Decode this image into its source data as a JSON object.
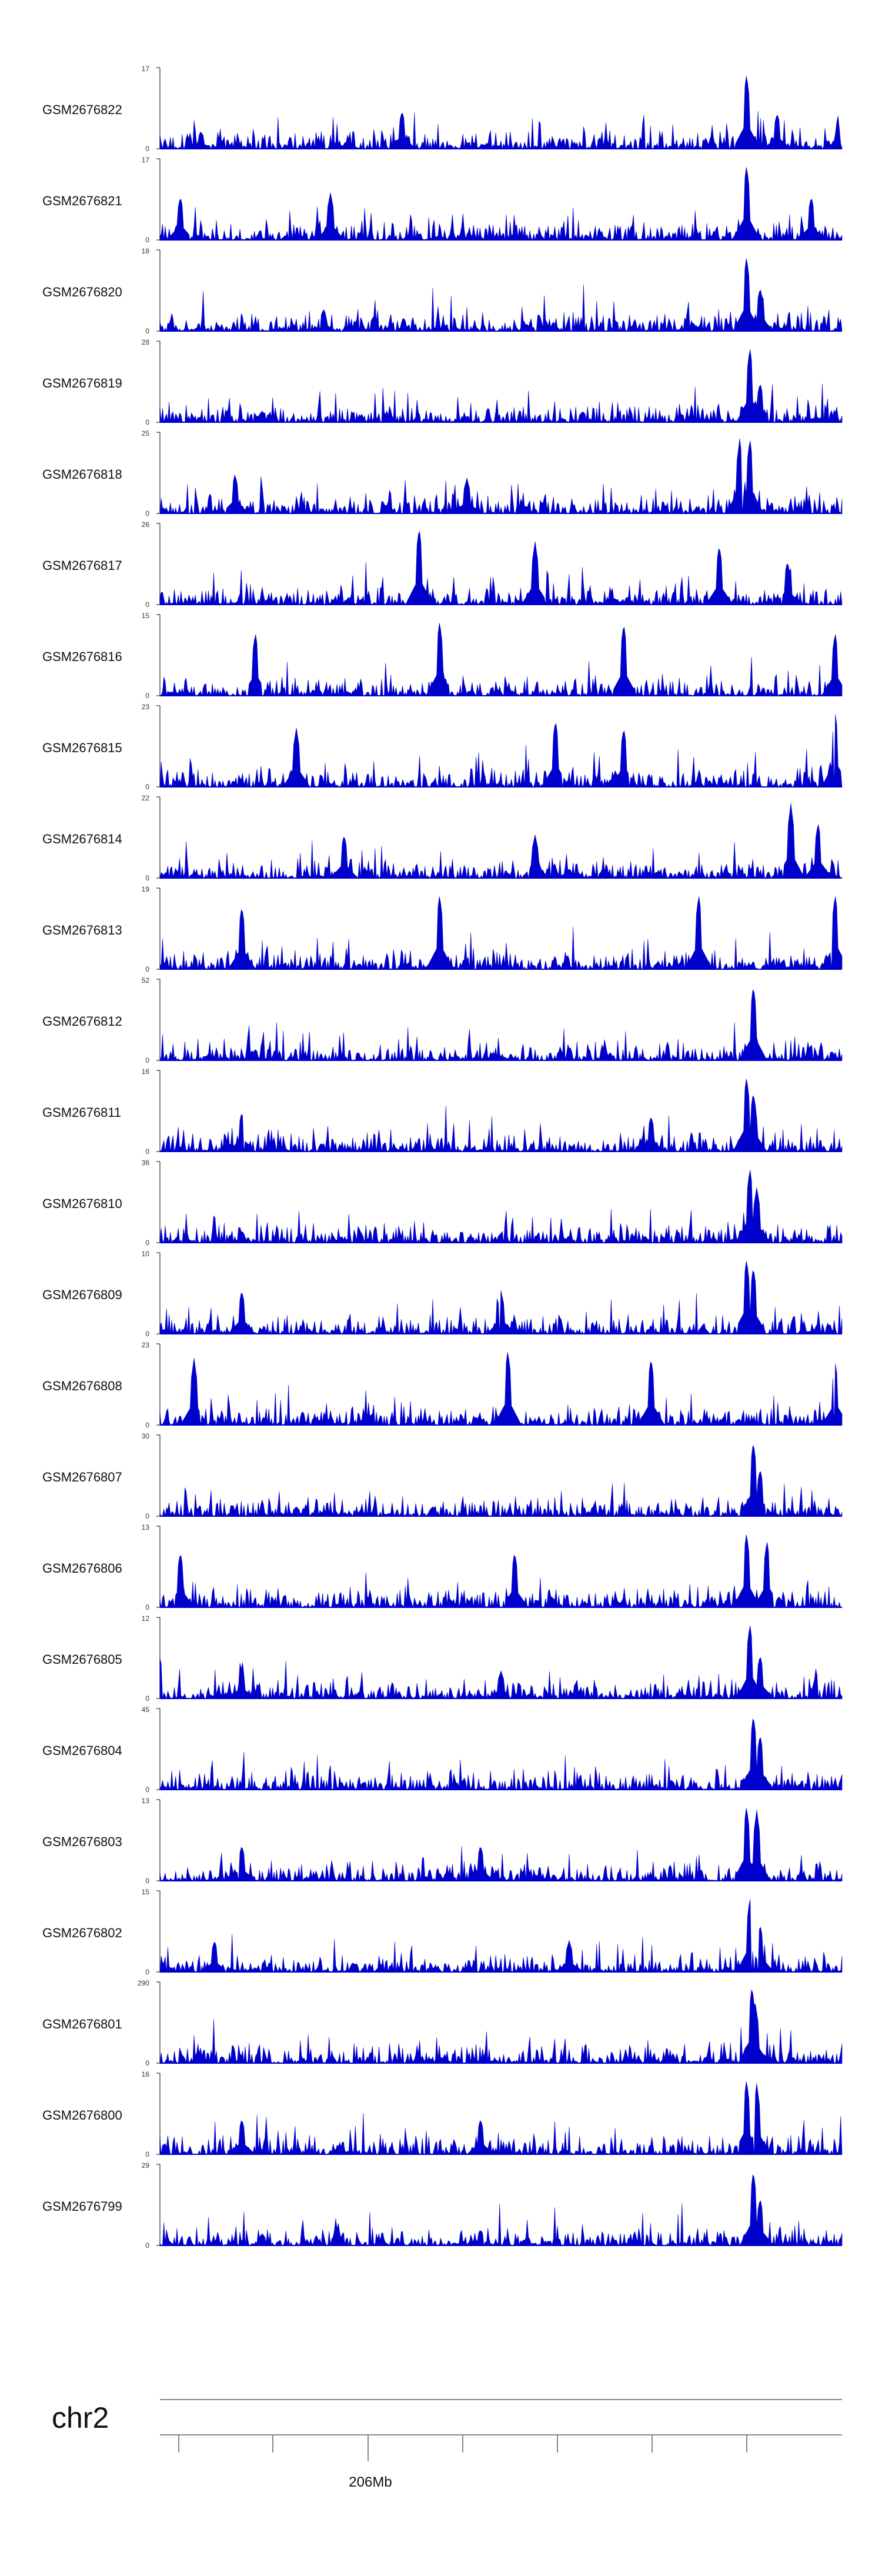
{
  "colors": {
    "signal": "#0000cc",
    "axis": "#555555",
    "text": "#111111"
  },
  "chart_data": {
    "type": "area",
    "tracks": [
      {
        "name": "GSM2676822",
        "ymax": "17",
        "ymin": "0",
        "max": 17,
        "peaks": [
          [
            0.06,
            0.22
          ],
          [
            0.355,
            0.48
          ],
          [
            0.86,
            0.95
          ],
          [
            0.905,
            0.45
          ]
        ]
      },
      {
        "name": "GSM2676821",
        "ymax": "17",
        "ymin": "0",
        "max": 17,
        "peaks": [
          [
            0.03,
            0.55
          ],
          [
            0.25,
            0.6
          ],
          [
            0.86,
            0.95
          ],
          [
            0.955,
            0.55
          ]
        ]
      },
      {
        "name": "GSM2676820",
        "ymax": "18",
        "ymin": "0",
        "max": 18,
        "peaks": [
          [
            0.24,
            0.28
          ],
          [
            0.555,
            0.22
          ],
          [
            0.86,
            0.95
          ],
          [
            0.88,
            0.55
          ]
        ]
      },
      {
        "name": "GSM2676819",
        "ymax": "28",
        "ymin": "0",
        "max": 28,
        "peaks": [
          [
            0.15,
            0.14
          ],
          [
            0.62,
            0.14
          ],
          [
            0.865,
            0.95
          ],
          [
            0.88,
            0.5
          ]
        ]
      },
      {
        "name": "GSM2676818",
        "ymax": "25",
        "ymin": "0",
        "max": 25,
        "peaks": [
          [
            0.11,
            0.5
          ],
          [
            0.45,
            0.45
          ],
          [
            0.85,
            0.95
          ],
          [
            0.865,
            0.95
          ]
        ]
      },
      {
        "name": "GSM2676817",
        "ymax": "26",
        "ymin": "0",
        "max": 26,
        "peaks": [
          [
            0.38,
            0.98
          ],
          [
            0.55,
            0.8
          ],
          [
            0.82,
            0.75
          ],
          [
            0.92,
            0.55
          ]
        ]
      },
      {
        "name": "GSM2676816",
        "ymax": "15",
        "ymin": "0",
        "max": 15,
        "peaks": [
          [
            0.14,
            0.8
          ],
          [
            0.41,
            0.95
          ],
          [
            0.68,
            0.92
          ],
          [
            0.99,
            0.8
          ]
        ]
      },
      {
        "name": "GSM2676815",
        "ymax": "23",
        "ymin": "0",
        "max": 23,
        "peaks": [
          [
            0.2,
            0.75
          ],
          [
            0.58,
            0.85
          ],
          [
            0.68,
            0.75
          ],
          [
            0.99,
            0.95
          ]
        ]
      },
      {
        "name": "GSM2676814",
        "ymax": "22",
        "ymin": "0",
        "max": 22,
        "peaks": [
          [
            0.27,
            0.55
          ],
          [
            0.55,
            0.55
          ],
          [
            0.925,
            0.95
          ],
          [
            0.965,
            0.7
          ]
        ]
      },
      {
        "name": "GSM2676813",
        "ymax": "19",
        "ymin": "0",
        "max": 19,
        "peaks": [
          [
            0.12,
            0.8
          ],
          [
            0.41,
            0.95
          ],
          [
            0.79,
            0.95
          ],
          [
            0.99,
            0.95
          ]
        ]
      },
      {
        "name": "GSM2676812",
        "ymax": "52",
        "ymin": "0",
        "max": 52,
        "peaks": [
          [
            0.14,
            0.14
          ],
          [
            0.7,
            0.12
          ],
          [
            0.87,
            0.95
          ],
          [
            0.955,
            0.2
          ]
        ]
      },
      {
        "name": "GSM2676811",
        "ymax": "16",
        "ymin": "0",
        "max": 16,
        "peaks": [
          [
            0.12,
            0.5
          ],
          [
            0.72,
            0.45
          ],
          [
            0.86,
            0.95
          ],
          [
            0.87,
            0.75
          ]
        ]
      },
      {
        "name": "GSM2676810",
        "ymax": "36",
        "ymin": "0",
        "max": 36,
        "peaks": [
          [
            0.12,
            0.15
          ],
          [
            0.5,
            0.12
          ],
          [
            0.865,
            0.95
          ],
          [
            0.875,
            0.7
          ]
        ]
      },
      {
        "name": "GSM2676809",
        "ymax": "10",
        "ymin": "0",
        "max": 10,
        "peaks": [
          [
            0.12,
            0.55
          ],
          [
            0.5,
            0.55
          ],
          [
            0.86,
            0.95
          ],
          [
            0.87,
            0.85
          ]
        ]
      },
      {
        "name": "GSM2676808",
        "ymax": "23",
        "ymin": "0",
        "max": 23,
        "peaks": [
          [
            0.05,
            0.85
          ],
          [
            0.51,
            0.95
          ],
          [
            0.72,
            0.85
          ],
          [
            0.99,
            0.8
          ]
        ]
      },
      {
        "name": "GSM2676807",
        "ymax": "30",
        "ymin": "0",
        "max": 30,
        "peaks": [
          [
            0.2,
            0.12
          ],
          [
            0.4,
            0.12
          ],
          [
            0.87,
            0.95
          ],
          [
            0.88,
            0.6
          ]
        ]
      },
      {
        "name": "GSM2676806",
        "ymax": "13",
        "ymin": "0",
        "max": 13,
        "peaks": [
          [
            0.03,
            0.7
          ],
          [
            0.52,
            0.7
          ],
          [
            0.86,
            0.95
          ],
          [
            0.89,
            0.85
          ]
        ]
      },
      {
        "name": "GSM2676805",
        "ymax": "12",
        "ymin": "0",
        "max": 12,
        "peaks": [
          [
            0.12,
            0.4
          ],
          [
            0.5,
            0.35
          ],
          [
            0.865,
            0.95
          ],
          [
            0.88,
            0.55
          ]
        ]
      },
      {
        "name": "GSM2676804",
        "ymax": "45",
        "ymin": "0",
        "max": 45,
        "peaks": [
          [
            0.3,
            0.1
          ],
          [
            0.75,
            0.12
          ],
          [
            0.87,
            0.95
          ],
          [
            0.88,
            0.7
          ]
        ]
      },
      {
        "name": "GSM2676803",
        "ymax": "13",
        "ymin": "0",
        "max": 13,
        "peaks": [
          [
            0.12,
            0.45
          ],
          [
            0.47,
            0.45
          ],
          [
            0.86,
            0.95
          ],
          [
            0.875,
            0.9
          ]
        ]
      },
      {
        "name": "GSM2676802",
        "ymax": "15",
        "ymin": "0",
        "max": 15,
        "peaks": [
          [
            0.08,
            0.4
          ],
          [
            0.6,
            0.4
          ],
          [
            0.865,
            0.95
          ],
          [
            0.88,
            0.6
          ]
        ]
      },
      {
        "name": "GSM2676801",
        "ymax": "290",
        "ymin": "0",
        "max": 290,
        "peaks": [
          [
            0.868,
            0.98
          ],
          [
            0.873,
            0.75
          ]
        ]
      },
      {
        "name": "GSM2676800",
        "ymax": "16",
        "ymin": "0",
        "max": 16,
        "peaks": [
          [
            0.12,
            0.45
          ],
          [
            0.47,
            0.45
          ],
          [
            0.86,
            0.95
          ],
          [
            0.875,
            0.9
          ]
        ]
      },
      {
        "name": "GSM2676799",
        "ymax": "29",
        "ymin": "0",
        "max": 29,
        "peaks": [
          [
            0.15,
            0.15
          ],
          [
            0.47,
            0.2
          ],
          [
            0.87,
            0.95
          ],
          [
            0.88,
            0.6
          ]
        ]
      }
    ],
    "chromosome": "chr2",
    "axis_label": "206Mb",
    "labeled_tick_index": 2
  }
}
